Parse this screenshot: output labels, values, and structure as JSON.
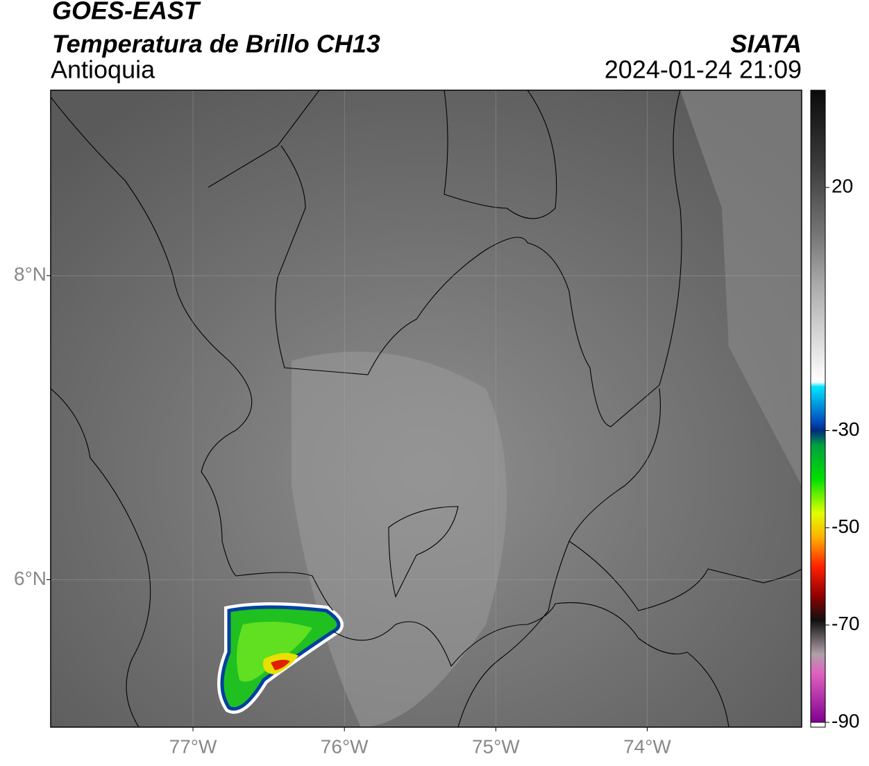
{
  "header": {
    "line1": "GOES-EAST",
    "line2": "Temperatura de Brillo CH13",
    "region": "Antioquia",
    "source": "SIATA",
    "datetime": "2024-01-24 21:09"
  },
  "map": {
    "lonlim": [
      -77.94,
      -72.98
    ],
    "latlim": [
      5.03,
      9.22
    ],
    "xticks": [
      {
        "value": -77,
        "label": "77°W"
      },
      {
        "value": -76,
        "label": "76°W"
      },
      {
        "value": -75,
        "label": "75°W"
      },
      {
        "value": -74,
        "label": "74°W"
      }
    ],
    "yticks": [
      {
        "value": 8,
        "label": "8°N"
      },
      {
        "value": 6,
        "label": "6°N"
      }
    ],
    "grid": true
  },
  "colorbar": {
    "clim": [
      -91,
      40
    ],
    "ticks": [
      20,
      -30,
      -50,
      -70,
      -90
    ],
    "stops": [
      [
        40,
        "#0a0a0a"
      ],
      [
        25,
        "#3a3a3a"
      ],
      [
        10,
        "#777777"
      ],
      [
        0,
        "#aaaaaa"
      ],
      [
        -20,
        "#ffffff"
      ],
      [
        -21,
        "#00e5ff"
      ],
      [
        -28,
        "#0050c0"
      ],
      [
        -30,
        "#002a80"
      ],
      [
        -33,
        "#00a040"
      ],
      [
        -40,
        "#00e000"
      ],
      [
        -47,
        "#e0ff00"
      ],
      [
        -52,
        "#ffb000"
      ],
      [
        -58,
        "#ff2000"
      ],
      [
        -64,
        "#900000"
      ],
      [
        -69,
        "#101010"
      ],
      [
        -76,
        "#b0a0a8"
      ],
      [
        -80,
        "#e060c0"
      ],
      [
        -90,
        "#800090"
      ]
    ]
  }
}
